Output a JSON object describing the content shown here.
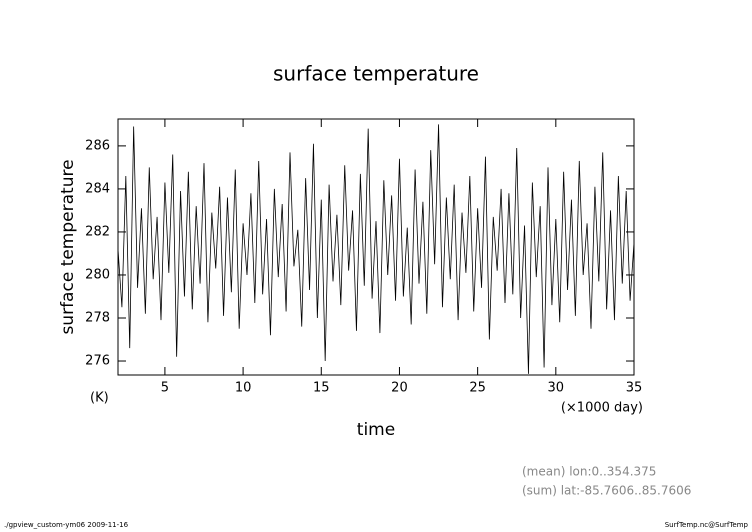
{
  "chart_data": {
    "type": "line",
    "title": "surface temperature",
    "ylabel": "surface temperature",
    "yunit": "(K)",
    "xlabel": "time",
    "xunit": "(×1000 day)",
    "notes": [
      "(mean) lon:0..354.375",
      "(sum) lat:-85.7606..85.7606"
    ],
    "footer_left": "./gpview_custom-ym06  2009-11-16",
    "footer_right": "SurfTemp.nc@SurfTemp",
    "xlim": [
      2,
      35
    ],
    "ylim": [
      275.35,
      287.25
    ],
    "xticks": [
      5,
      10,
      15,
      20,
      25,
      30,
      35
    ],
    "yticks": [
      276,
      278,
      280,
      282,
      284,
      286
    ],
    "x": [
      2,
      2.25,
      2.5,
      2.75,
      3,
      3.25,
      3.5,
      3.75,
      4,
      4.25,
      4.5,
      4.75,
      5,
      5.25,
      5.5,
      5.75,
      6,
      6.25,
      6.5,
      6.75,
      7,
      7.25,
      7.5,
      7.75,
      8,
      8.25,
      8.5,
      8.75,
      9,
      9.25,
      9.5,
      9.75,
      10,
      10.25,
      10.5,
      10.75,
      11,
      11.25,
      11.5,
      11.75,
      12,
      12.25,
      12.5,
      12.75,
      13,
      13.25,
      13.5,
      13.75,
      14,
      14.25,
      14.5,
      14.75,
      15,
      15.25,
      15.5,
      15.75,
      16,
      16.25,
      16.5,
      16.75,
      17,
      17.25,
      17.5,
      17.75,
      18,
      18.25,
      18.5,
      18.75,
      19,
      19.25,
      19.5,
      19.75,
      20,
      20.25,
      20.5,
      20.75,
      21,
      21.25,
      21.5,
      21.75,
      22,
      22.25,
      22.5,
      22.75,
      23,
      23.25,
      23.5,
      23.75,
      24,
      24.25,
      24.5,
      24.75,
      25,
      25.25,
      25.5,
      25.75,
      26,
      26.25,
      26.5,
      26.75,
      27,
      27.25,
      27.5,
      27.75,
      28,
      28.25,
      28.5,
      28.75,
      29,
      29.25,
      29.5,
      29.75,
      30,
      30.25,
      30.5,
      30.75,
      31,
      31.25,
      31.5,
      31.75,
      32,
      32.25,
      32.5,
      32.75,
      33,
      33.25,
      33.5,
      33.75,
      34,
      34.25,
      34.5,
      34.75,
      35
    ],
    "series": [
      {
        "color": "#000000",
        "values": [
          281.2,
          278.5,
          284.6,
          276.6,
          286.9,
          279.4,
          283.1,
          278.2,
          285.0,
          279.8,
          282.7,
          277.9,
          284.3,
          280.1,
          285.6,
          276.2,
          283.9,
          279.0,
          284.8,
          278.4,
          283.2,
          279.6,
          285.2,
          277.8,
          282.9,
          280.3,
          284.1,
          278.1,
          283.6,
          279.2,
          284.9,
          277.5,
          282.4,
          280.0,
          283.8,
          278.7,
          285.3,
          279.1,
          282.6,
          277.2,
          284.0,
          279.9,
          283.3,
          278.3,
          285.7,
          280.4,
          282.1,
          277.6,
          284.5,
          279.3,
          286.1,
          278.0,
          283.5,
          276.0,
          284.2,
          279.7,
          282.8,
          278.6,
          285.1,
          280.2,
          283.0,
          277.4,
          284.7,
          279.5,
          286.8,
          278.9,
          282.5,
          277.3,
          284.4,
          280.0,
          283.7,
          278.8,
          285.4,
          279.0,
          282.2,
          277.7,
          284.9,
          279.6,
          283.4,
          278.2,
          285.8,
          280.5,
          287.0,
          278.5,
          283.6,
          279.8,
          284.2,
          277.9,
          282.9,
          280.1,
          284.6,
          278.3,
          283.1,
          279.4,
          285.5,
          277.0,
          282.7,
          280.2,
          284.0,
          278.7,
          283.8,
          279.1,
          285.9,
          278.0,
          282.3,
          275.4,
          284.3,
          279.9,
          283.2,
          275.7,
          285.0,
          278.6,
          282.6,
          277.8,
          284.8,
          279.3,
          283.5,
          278.1,
          285.3,
          280.0,
          282.4,
          277.5,
          284.1,
          279.7,
          285.7,
          278.4,
          283.0,
          277.9,
          284.6,
          279.6,
          283.9,
          278.8,
          281.5
        ]
      }
    ]
  }
}
